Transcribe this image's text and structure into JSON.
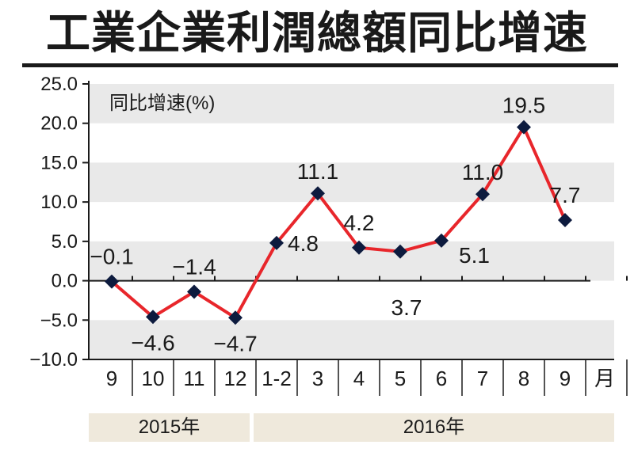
{
  "title": "工業企業利潤總額同比增速",
  "chart_data": {
    "type": "line",
    "ylabel": "同比增速(%)",
    "categories": [
      "9",
      "10",
      "11",
      "12",
      "1-2",
      "3",
      "4",
      "5",
      "6",
      "7",
      "8",
      "9"
    ],
    "month_suffix": "月",
    "values": [
      -0.1,
      -4.6,
      -1.4,
      -4.7,
      4.8,
      11.1,
      4.2,
      3.7,
      5.1,
      11.0,
      19.5,
      7.7
    ],
    "data_labels": [
      "−0.1",
      "−4.6",
      "−1.4",
      "−4.7",
      "4.8",
      "11.1",
      "4.2",
      "3.7",
      "5.1",
      "11.0",
      "19.5",
      "7.7"
    ],
    "y_ticks": [
      25.0,
      20.0,
      15.0,
      10.0,
      5.0,
      0.0,
      -5.0,
      -10.0
    ],
    "y_tick_labels": [
      "25.0",
      "20.0",
      "15.0",
      "10.0",
      "5.0",
      "0.0",
      "−5.0",
      "−10.0"
    ],
    "ylim": [
      -10,
      25
    ],
    "years": [
      {
        "label": "2015年"
      },
      {
        "label": "2016年"
      }
    ],
    "grid": "alternating horizontal bands",
    "line_color": "#e8262b",
    "marker_color": "#0d1b3e",
    "band_color": "#e9e9e9",
    "year_band_color": "#efe9dc"
  }
}
